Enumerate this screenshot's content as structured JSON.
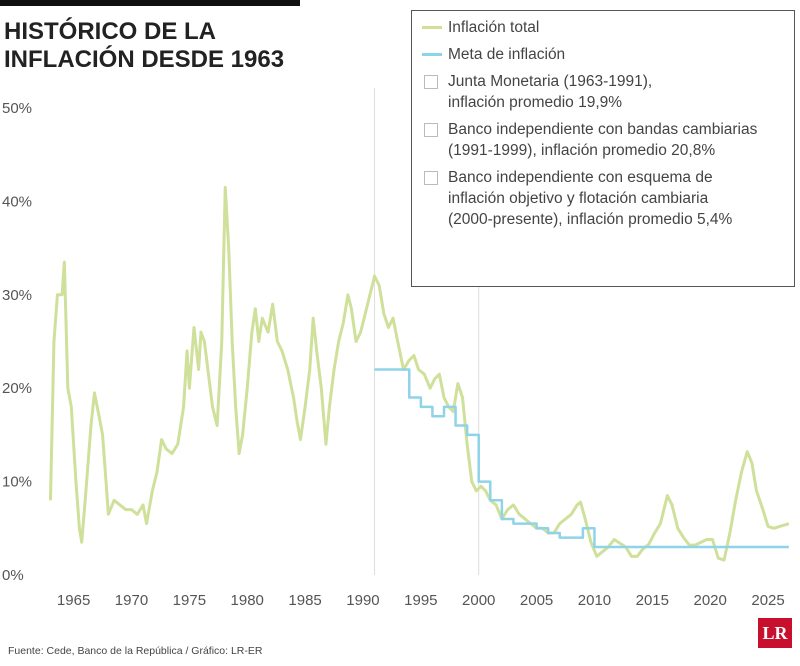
{
  "chart_data": {
    "type": "line",
    "title": [
      "HISTÓRICO DE LA",
      "INFLACIÓN DESDE 1963"
    ],
    "source": "Fuente: Cede, Banco de la República / Gráfico: LR-ER",
    "brand": "LR",
    "xlim": [
      1962.7,
      2027.5
    ],
    "xticks": [
      1965,
      1970,
      1975,
      1980,
      1985,
      1990,
      1995,
      2000,
      2005,
      2010,
      2015,
      2020,
      2025
    ],
    "ylim": [
      0,
      50
    ],
    "yticks": [
      {
        "value": 0,
        "label": "0%"
      },
      {
        "value": 10,
        "label": "10%"
      },
      {
        "value": 20,
        "label": "20%"
      },
      {
        "value": 30,
        "label": "30%"
      },
      {
        "value": 40,
        "label": "40%"
      },
      {
        "value": 50,
        "label": "50%"
      }
    ],
    "series": [
      {
        "name": "Inflación total",
        "color": "#cfe09a",
        "step": false,
        "x": [
          1963.0,
          1963.3,
          1963.6,
          1964.0,
          1964.2,
          1964.5,
          1964.8,
          1965.2,
          1965.5,
          1965.7,
          1966.0,
          1966.5,
          1966.8,
          1967.2,
          1967.5,
          1967.8,
          1968.0,
          1968.5,
          1969.0,
          1969.5,
          1970.0,
          1970.5,
          1971.0,
          1971.3,
          1971.8,
          1972.2,
          1972.6,
          1973.0,
          1973.5,
          1974.0,
          1974.5,
          1974.8,
          1975.0,
          1975.4,
          1975.8,
          1976.0,
          1976.3,
          1976.7,
          1977.0,
          1977.4,
          1977.8,
          1978.1,
          1978.4,
          1978.7,
          1979.0,
          1979.3,
          1979.6,
          1980.0,
          1980.4,
          1980.7,
          1981.0,
          1981.3,
          1981.8,
          1982.2,
          1982.6,
          1983.0,
          1983.5,
          1984.0,
          1984.3,
          1984.6,
          1985.0,
          1985.4,
          1985.7,
          1986.0,
          1986.4,
          1986.8,
          1987.1,
          1987.5,
          1987.9,
          1988.3,
          1988.7,
          1989.0,
          1989.4,
          1989.8,
          1990.2,
          1990.6,
          1991.0,
          1991.4,
          1991.8,
          1992.2,
          1992.6,
          1993.0,
          1993.5,
          1994.0,
          1994.4,
          1994.8,
          1995.3,
          1995.8,
          1996.2,
          1996.6,
          1997.0,
          1997.4,
          1997.8,
          1998.2,
          1998.6,
          1999.0,
          1999.4,
          1999.8,
          2000.2,
          2000.6,
          2001.0,
          2001.5,
          2002.0,
          2002.5,
          2003.0,
          2003.5,
          2004.0,
          2004.5,
          2005.0,
          2005.5,
          2006.0,
          2006.5,
          2007.0,
          2007.5,
          2008.0,
          2008.5,
          2008.8,
          2009.2,
          2009.7,
          2010.2,
          2010.7,
          2011.2,
          2011.7,
          2012.2,
          2012.7,
          2013.2,
          2013.7,
          2014.2,
          2014.7,
          2015.2,
          2015.7,
          2016.3,
          2016.7,
          2017.2,
          2017.7,
          2018.2,
          2018.7,
          2019.2,
          2019.7,
          2020.2,
          2020.7,
          2021.2,
          2021.7,
          2022.2,
          2022.7,
          2023.2,
          2023.6,
          2024.0,
          2024.5,
          2025.0,
          2025.5,
          2026.0,
          2026.8
        ],
        "values": [
          8,
          25,
          30,
          30,
          33.5,
          20,
          18,
          10,
          5,
          3.5,
          8,
          16,
          19.5,
          17,
          15,
          10,
          6.5,
          8,
          7.5,
          7,
          7,
          6.5,
          7.5,
          5.5,
          9,
          11,
          14.5,
          13.5,
          13,
          14,
          18,
          24,
          20,
          26.5,
          22,
          26,
          25,
          21,
          18,
          16,
          25,
          41.5,
          35,
          25,
          18,
          13,
          15,
          20,
          26,
          28.5,
          25,
          27.5,
          26,
          29,
          25,
          24,
          22,
          19,
          16.5,
          14.5,
          18,
          22,
          27.5,
          24,
          20,
          14,
          18,
          22,
          25,
          27,
          30,
          28.5,
          25,
          26,
          28,
          30,
          32,
          31,
          28,
          26.5,
          27.5,
          25,
          22,
          23,
          23.5,
          22,
          21.5,
          20,
          21,
          21.5,
          19,
          18,
          17.5,
          20.5,
          19,
          14,
          10,
          9,
          9.5,
          9,
          8,
          7.5,
          6,
          7,
          7.5,
          6.5,
          6,
          5.5,
          5,
          5,
          4.5,
          4.5,
          5.5,
          6,
          6.5,
          7.5,
          7.8,
          6,
          3.5,
          2,
          2.5,
          3,
          3.8,
          3.4,
          3,
          2,
          2,
          2.8,
          3.3,
          4.5,
          5.5,
          8.5,
          7.5,
          5,
          4,
          3.2,
          3.2,
          3.5,
          3.8,
          3.8,
          1.8,
          1.6,
          4.5,
          8,
          11,
          13.2,
          12,
          9,
          7.2,
          5.2,
          5,
          5.2,
          5.5
        ]
      },
      {
        "name": "Meta de inflación",
        "color": "#8fd3e8",
        "step": true,
        "x": [
          1991,
          1994,
          1995,
          1996,
          1997,
          1998,
          1999,
          2000,
          2001,
          2002,
          2003,
          2005,
          2006,
          2007,
          2009,
          2010,
          2026.8
        ],
        "values": [
          22,
          19,
          18,
          17,
          18,
          16,
          15,
          10,
          8,
          6,
          5.5,
          5,
          4.5,
          4,
          5,
          3,
          3
        ]
      }
    ],
    "periods": [
      {
        "name": [
          "Junta Monetaria (1963-1991),",
          "inflación promedio 19,9%"
        ],
        "xrange": [
          1962.7,
          1991
        ]
      },
      {
        "name": [
          "Banco independiente con bandas cambiarias",
          "(1991-1999), inflación promedio 20,8%"
        ],
        "xrange": [
          1991,
          2000
        ]
      },
      {
        "name": [
          "Banco independiente con esquema de",
          "inflación objetivo y flotación cambiaria",
          "(2000-presente), inflación promedio 5,4%"
        ],
        "xrange": [
          2000,
          2027.5
        ]
      }
    ]
  }
}
